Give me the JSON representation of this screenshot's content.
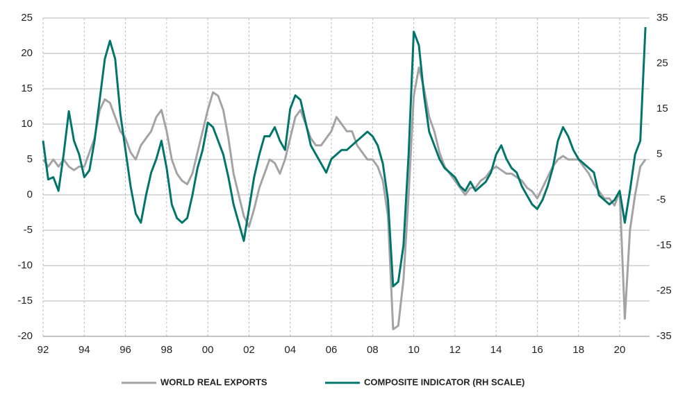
{
  "chart_data": {
    "type": "line",
    "x": [
      1992,
      1992.25,
      1992.5,
      1992.75,
      1993,
      1993.25,
      1993.5,
      1993.75,
      1994,
      1994.25,
      1994.5,
      1994.75,
      1995,
      1995.25,
      1995.5,
      1995.75,
      1996,
      1996.25,
      1996.5,
      1996.75,
      1997,
      1997.25,
      1997.5,
      1997.75,
      1998,
      1998.25,
      1998.5,
      1998.75,
      1999,
      1999.25,
      1999.5,
      1999.75,
      2000,
      2000.25,
      2000.5,
      2000.75,
      2001,
      2001.25,
      2001.5,
      2001.75,
      2002,
      2002.25,
      2002.5,
      2002.75,
      2003,
      2003.25,
      2003.5,
      2003.75,
      2004,
      2004.25,
      2004.5,
      2004.75,
      2005,
      2005.25,
      2005.5,
      2005.75,
      2006,
      2006.25,
      2006.5,
      2006.75,
      2007,
      2007.25,
      2007.5,
      2007.75,
      2008,
      2008.25,
      2008.5,
      2008.75,
      2009,
      2009.25,
      2009.5,
      2009.75,
      2010,
      2010.25,
      2010.5,
      2010.75,
      2011,
      2011.25,
      2011.5,
      2011.75,
      2012,
      2012.25,
      2012.5,
      2012.75,
      2013,
      2013.25,
      2013.5,
      2013.75,
      2014,
      2014.25,
      2014.5,
      2014.75,
      2015,
      2015.25,
      2015.5,
      2015.75,
      2016,
      2016.25,
      2016.5,
      2016.75,
      2017,
      2017.25,
      2017.5,
      2017.75,
      2018,
      2018.25,
      2018.5,
      2018.75,
      2019,
      2019.25,
      2019.5,
      2019.75,
      2020,
      2020.25,
      2020.5,
      2020.75,
      2021,
      2021.25
    ],
    "series": [
      {
        "name": "WORLD REAL EXPORTS",
        "color": "#a3a3a3",
        "axis": "y",
        "values": [
          5,
          4,
          5,
          4,
          5,
          4,
          3.5,
          4,
          4,
          6,
          8,
          12,
          13.5,
          13,
          11,
          9,
          8,
          6,
          5,
          7,
          8,
          9,
          11,
          12,
          9,
          5,
          3,
          2,
          1.5,
          3,
          6,
          9,
          12,
          14.5,
          14,
          12,
          8,
          3,
          0,
          -3,
          -4.5,
          -2,
          1,
          3,
          5,
          4.5,
          3,
          5,
          8,
          11,
          12,
          10,
          8,
          7,
          7,
          8,
          9,
          11,
          10,
          9,
          9,
          7,
          6,
          5,
          5,
          4,
          2,
          -3,
          -19,
          -18.5,
          -12,
          0,
          14,
          18,
          15,
          11,
          9,
          6,
          4,
          3,
          2,
          1,
          0,
          1,
          1,
          2,
          2.5,
          3.5,
          4,
          3.5,
          3,
          3,
          2.5,
          2,
          1,
          0.5,
          -0.5,
          1,
          2.5,
          4,
          5,
          5.5,
          5,
          5,
          5,
          4,
          3,
          1.5,
          0.5,
          -0.5,
          -0.5,
          -1.5,
          0.5,
          -17.5,
          -5,
          0,
          4,
          5
        ]
      },
      {
        "name": "COMPOSITE INDICATOR (RH SCALE)",
        "color": "#00756b",
        "axis": "y2",
        "values": [
          8,
          -0.5,
          0,
          -3,
          5,
          14.5,
          8,
          5,
          0,
          1.5,
          8,
          17,
          26,
          30,
          26,
          14,
          6,
          -2,
          -8,
          -10,
          -4,
          1,
          4,
          8,
          2,
          -6,
          -9,
          -10,
          -9,
          -4,
          2,
          6,
          12,
          11,
          8,
          5,
          0,
          -6,
          -10,
          -14,
          -7,
          0,
          5,
          9,
          9,
          11,
          8,
          6,
          15,
          18,
          17,
          12,
          7,
          5,
          3,
          1,
          4,
          5,
          6,
          6,
          7,
          8,
          9,
          10,
          9,
          7,
          3,
          -5,
          -24,
          -23,
          -15,
          5,
          32,
          29,
          18,
          10,
          7,
          4,
          2,
          1,
          0,
          -2,
          -3,
          -1,
          -3,
          -2,
          -1,
          1,
          5,
          7,
          4,
          2,
          1,
          -2,
          -4,
          -6,
          -7,
          -5,
          -2,
          2,
          8,
          11,
          9,
          6,
          4,
          3,
          2,
          1,
          -4,
          -5,
          -6,
          -5,
          -3,
          -10,
          -3,
          5,
          8,
          33
        ]
      }
    ],
    "xlim": [
      1992,
      2021.45
    ],
    "xticks": [
      {
        "value": 1992,
        "label": "92"
      },
      {
        "value": 1994,
        "label": "94"
      },
      {
        "value": 1996,
        "label": "96"
      },
      {
        "value": 1998,
        "label": "98"
      },
      {
        "value": 2000,
        "label": "00"
      },
      {
        "value": 2002,
        "label": "02"
      },
      {
        "value": 2004,
        "label": "04"
      },
      {
        "value": 2006,
        "label": "06"
      },
      {
        "value": 2008,
        "label": "08"
      },
      {
        "value": 2010,
        "label": "10"
      },
      {
        "value": 2012,
        "label": "12"
      },
      {
        "value": 2014,
        "label": "14"
      },
      {
        "value": 2016,
        "label": "16"
      },
      {
        "value": 2018,
        "label": "18"
      },
      {
        "value": 2020,
        "label": "20"
      }
    ],
    "ylim": [
      -20,
      25
    ],
    "yticks": [
      -20,
      -15,
      -10,
      -5,
      0,
      5,
      10,
      15,
      20,
      25
    ],
    "y2lim": [
      -35,
      35
    ],
    "y2ticks": [
      -35,
      -25,
      -15,
      -5,
      5,
      15,
      25,
      35
    ],
    "grid": true,
    "legend": "bottom"
  }
}
